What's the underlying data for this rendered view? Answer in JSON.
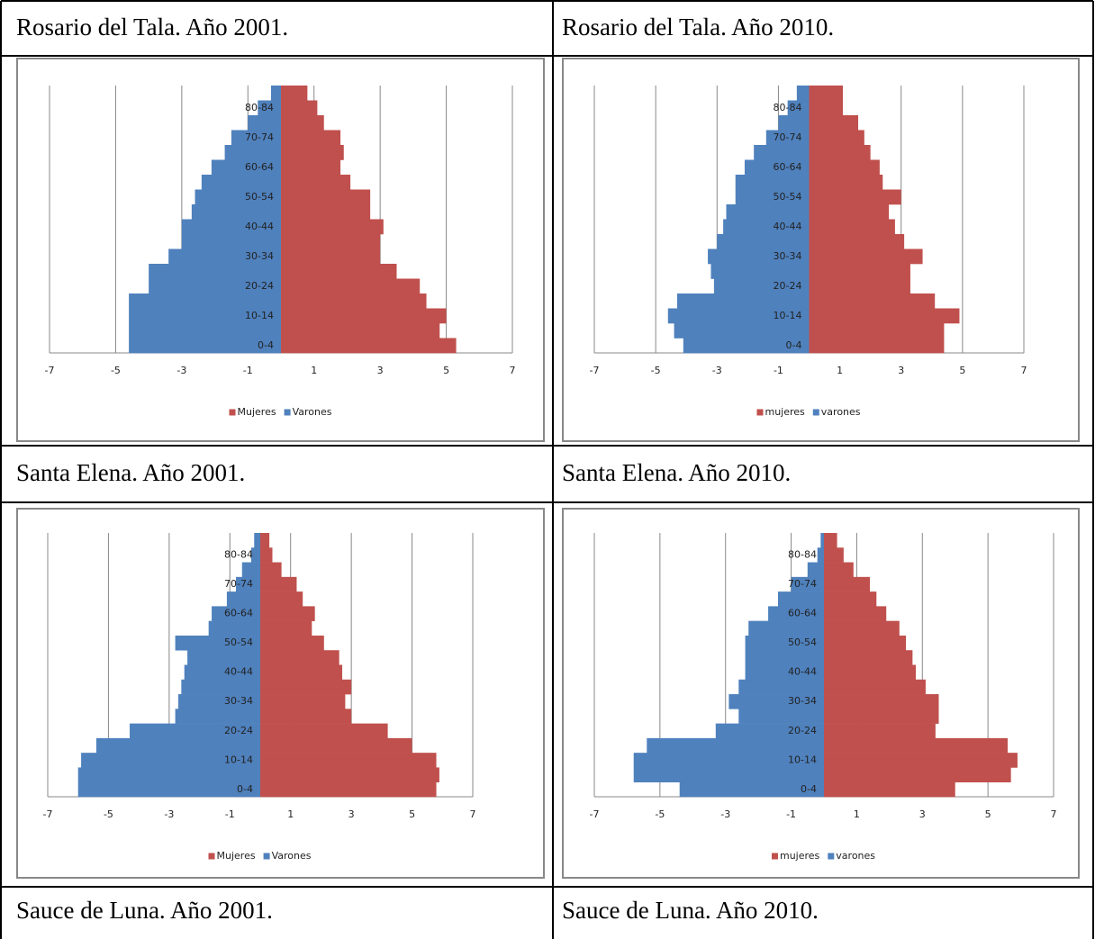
{
  "titles": [
    "Rosario del Tala. Año 2001.",
    "Rosario del Tala. Año 2010.",
    "Santa Elena. Año 2001.",
    "Santa Elena. Año 2010.",
    "Sauce de Luna. Año 2001.",
    "Sauce de Luna. Año 2010."
  ],
  "chart_data": [
    {
      "type": "bar",
      "orientation": "horizontal",
      "grid": true,
      "legend": "bottom",
      "categories": [
        "0-4",
        null,
        "10-14",
        null,
        "20-24",
        null,
        "30-34",
        null,
        "40-44",
        null,
        "50-54",
        null,
        "60-64",
        null,
        "70-74",
        null,
        "80-84",
        null
      ],
      "xlim": [
        -7,
        7
      ],
      "xticks": [
        -7,
        -5,
        -3,
        -1,
        1,
        3,
        5,
        7
      ],
      "series": [
        {
          "name": "Mujeres",
          "color": "#c0504d",
          "values": [
            5.3,
            4.8,
            5.0,
            4.4,
            4.2,
            3.5,
            3.0,
            3.0,
            3.1,
            2.7,
            2.7,
            2.1,
            1.8,
            1.9,
            1.8,
            1.3,
            1.1,
            0.8
          ]
        },
        {
          "name": "Varones",
          "color": "#4f81bd",
          "values": [
            -4.6,
            -4.6,
            -4.6,
            -4.6,
            -4.0,
            -4.0,
            -3.4,
            -3.0,
            -3.0,
            -2.7,
            -2.6,
            -2.4,
            -2.1,
            -1.7,
            -1.5,
            -1.0,
            -0.7,
            -0.3
          ]
        }
      ]
    },
    {
      "type": "bar",
      "orientation": "horizontal",
      "grid": true,
      "legend": "bottom",
      "categories": [
        "0-4",
        null,
        "10-14",
        null,
        "20-24",
        null,
        "30-34",
        null,
        "40-44",
        null,
        "50-54",
        null,
        "60-64",
        null,
        "70-74",
        null,
        "80-84",
        null
      ],
      "xlim": [
        -7,
        7
      ],
      "xticks": [
        -7,
        -5,
        -3,
        -1,
        1,
        3,
        5,
        7
      ],
      "series": [
        {
          "name": "mujeres",
          "color": "#c0504d",
          "values": [
            4.4,
            4.4,
            4.9,
            4.1,
            3.3,
            3.3,
            3.7,
            3.1,
            2.8,
            2.6,
            3.0,
            2.4,
            2.3,
            2.0,
            1.8,
            1.6,
            1.1,
            1.1
          ]
        },
        {
          "name": "varones",
          "color": "#4f81bd",
          "values": [
            -4.1,
            -4.4,
            -4.6,
            -4.3,
            -3.1,
            -3.2,
            -3.3,
            -3.0,
            -2.8,
            -2.7,
            -2.4,
            -2.4,
            -2.1,
            -1.8,
            -1.4,
            -1.0,
            -0.7,
            -0.4
          ]
        }
      ]
    },
    {
      "type": "bar",
      "orientation": "horizontal",
      "grid": true,
      "legend": "bottom",
      "categories": [
        "0-4",
        null,
        "10-14",
        null,
        "20-24",
        null,
        "30-34",
        null,
        "40-44",
        null,
        "50-54",
        null,
        "60-64",
        null,
        "70-74",
        null,
        "80-84",
        null
      ],
      "xlim": [
        -7,
        7
      ],
      "xticks": [
        -7,
        -5,
        -3,
        -1,
        1,
        3,
        5,
        7
      ],
      "series": [
        {
          "name": "Mujeres",
          "color": "#c0504d",
          "values": [
            5.8,
            5.9,
            5.8,
            5.0,
            4.2,
            3.0,
            2.8,
            3.0,
            2.7,
            2.6,
            2.1,
            1.7,
            1.8,
            1.4,
            1.2,
            0.7,
            0.4,
            0.3
          ]
        },
        {
          "name": "Varones",
          "color": "#4f81bd",
          "values": [
            -6.0,
            -6.0,
            -5.9,
            -5.4,
            -4.3,
            -2.8,
            -2.7,
            -2.6,
            -2.5,
            -2.4,
            -2.8,
            -1.7,
            -1.6,
            -1.1,
            -0.8,
            -0.6,
            -0.3,
            -0.2
          ]
        }
      ]
    },
    {
      "type": "bar",
      "orientation": "horizontal",
      "grid": true,
      "legend": "bottom",
      "categories": [
        "0-4",
        null,
        "10-14",
        null,
        "20-24",
        null,
        "30-34",
        null,
        "40-44",
        null,
        "50-54",
        null,
        "60-64",
        null,
        "70-74",
        null,
        "80-84",
        null
      ],
      "xlim": [
        -7,
        7
      ],
      "xticks": [
        -7,
        -5,
        -3,
        -1,
        1,
        3,
        5,
        7
      ],
      "series": [
        {
          "name": "mujeres",
          "color": "#c0504d",
          "values": [
            4.0,
            5.7,
            5.9,
            5.6,
            3.4,
            3.5,
            3.5,
            3.1,
            2.8,
            2.7,
            2.5,
            2.3,
            1.9,
            1.6,
            1.4,
            0.9,
            0.6,
            0.4
          ]
        },
        {
          "name": "varones",
          "color": "#4f81bd",
          "values": [
            -4.4,
            -5.8,
            -5.8,
            -5.4,
            -3.3,
            -2.6,
            -2.9,
            -2.6,
            -2.4,
            -2.4,
            -2.4,
            -2.3,
            -1.7,
            -1.4,
            -1.0,
            -0.5,
            -0.2,
            -0.1
          ]
        }
      ]
    }
  ]
}
